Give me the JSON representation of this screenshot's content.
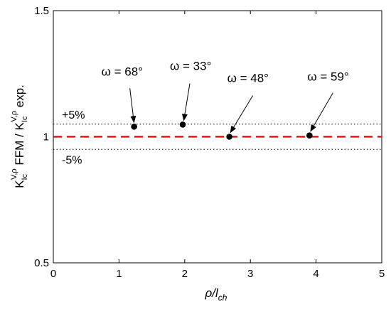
{
  "chart_data": {
    "type": "scatter",
    "xlabel": "ρ/l_ch",
    "ylabel": "K_Ic^{V,ρ} FFM / K_Ic^{V,ρ} exp.",
    "xlim": [
      0,
      5
    ],
    "ylim": [
      0.5,
      1.5
    ],
    "xticks": [
      "0",
      "1",
      "2",
      "3",
      "4",
      "5"
    ],
    "yticks": [
      "0.5",
      "1",
      "1.5"
    ],
    "grid": false,
    "points": [
      {
        "x": 1.23,
        "y": 1.04,
        "label": "ω = 68°"
      },
      {
        "x": 1.97,
        "y": 1.048,
        "label": "ω = 33°"
      },
      {
        "x": 2.68,
        "y": 1.0,
        "label": "ω = 48°"
      },
      {
        "x": 3.9,
        "y": 1.005,
        "label": "ω = 59°"
      }
    ],
    "reference_line": {
      "y": 1.0,
      "style": "dashed",
      "color": "#e00000"
    },
    "bands": [
      {
        "y": 1.05,
        "label": "+5%",
        "style": "dotted"
      },
      {
        "y": 0.95,
        "label": "-5%",
        "style": "dotted"
      }
    ]
  }
}
